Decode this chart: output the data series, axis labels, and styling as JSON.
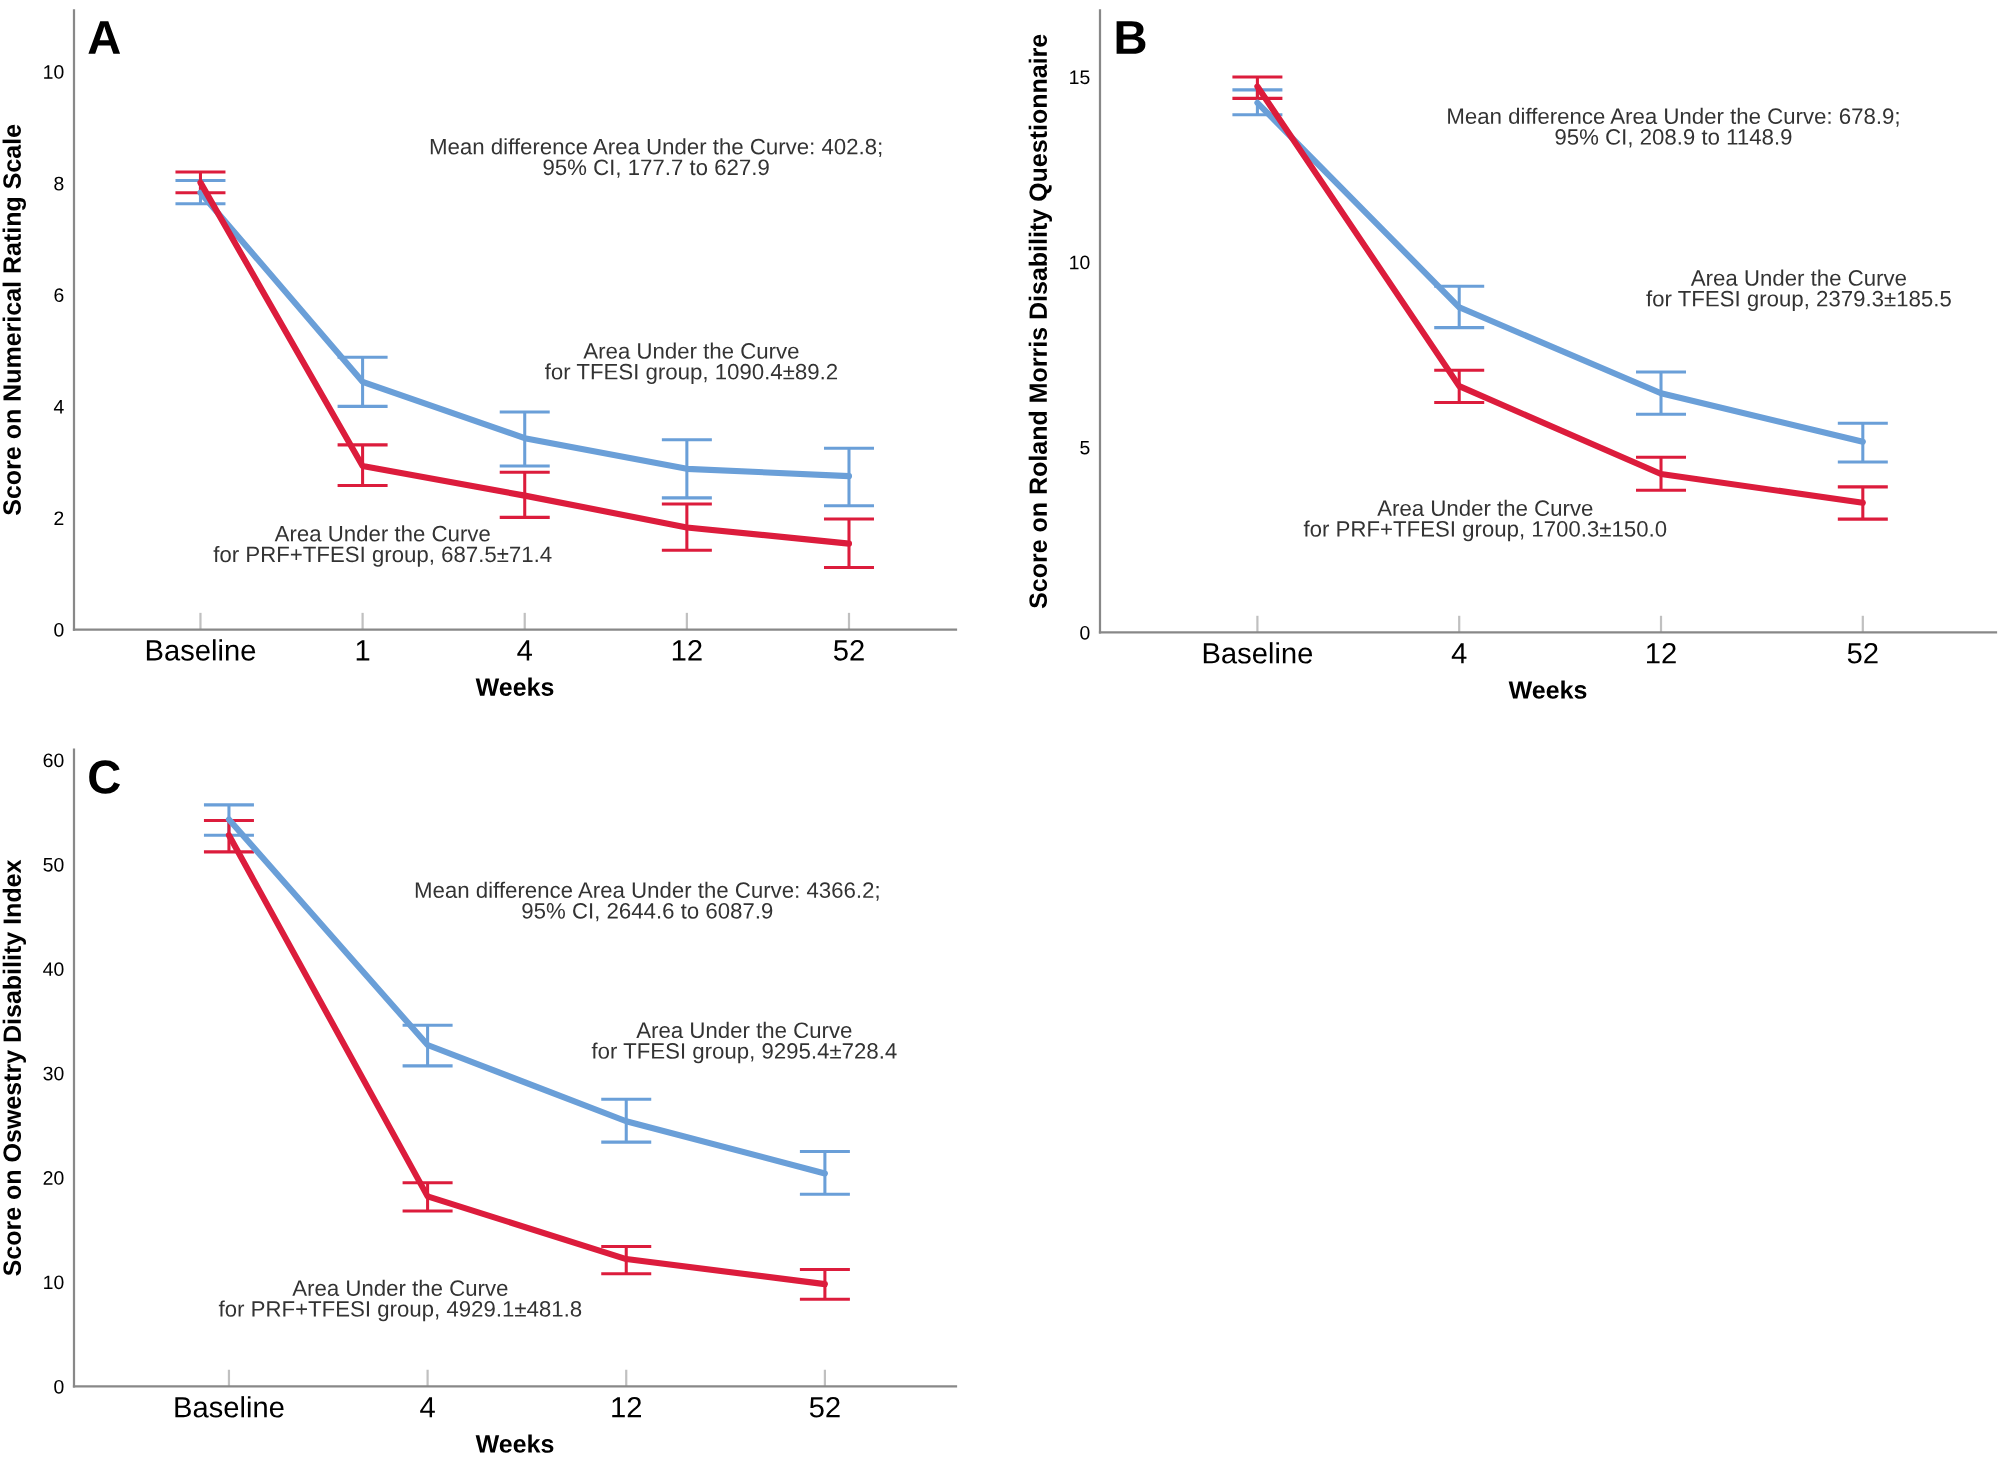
{
  "chart_data": [
    {
      "type": "line",
      "title": "A",
      "xlabel": "Weeks",
      "ylabel": "Score on Numerical Rating Scale",
      "categories": [
        "Baseline",
        "1",
        "4",
        "12",
        "52"
      ],
      "ylim": [
        0,
        11.1
      ],
      "yticks": [
        0,
        2,
        4,
        6,
        8,
        10
      ],
      "grid": false,
      "marker": "none",
      "line_style": "solid",
      "series": [
        {
          "color": "#6a9fd8",
          "values": [
            7.83,
            4.44,
            3.43,
            2.88,
            2.75
          ],
          "errors": [
            [
              7.63,
              8.05
            ],
            [
              4.0,
              4.88
            ],
            [
              2.93,
              3.9
            ],
            [
              2.36,
              3.4
            ],
            [
              2.22,
              3.25
            ]
          ]
        },
        {
          "color": "#dc1c3c",
          "values": [
            8.01,
            2.93,
            2.4,
            1.83,
            1.54
          ],
          "errors": [
            [
              7.83,
              8.2
            ],
            [
              2.58,
              3.31
            ],
            [
              2.01,
              2.82
            ],
            [
              1.42,
              2.25
            ],
            [
              1.11,
              1.98
            ]
          ]
        }
      ],
      "annotations": [
        "Mean difference Area Under the Curve: 402.8;\n95% CI, 177.7 to 627.9",
        "Area Under the Curve\nfor TFESI group, 1090.4±89.2",
        "Area Under the Curve\nfor PRF+TFESI group, 687.5±71.4"
      ]
    },
    {
      "type": "line",
      "title": "B",
      "xlabel": "Weeks",
      "ylabel": "Score on Roland Morris Disability Questionnaire",
      "categories": [
        "Baseline",
        "4",
        "12",
        "52"
      ],
      "ylim": [
        0,
        16.8
      ],
      "yticks": [
        0,
        5,
        10,
        15
      ],
      "grid": false,
      "marker": "none",
      "line_style": "solid",
      "series": [
        {
          "color": "#6a9fd8",
          "values": [
            14.3,
            8.78,
            6.46,
            5.15
          ],
          "errors": [
            [
              13.98,
              14.65
            ],
            [
              8.23,
              9.35
            ],
            [
              5.89,
              7.03
            ],
            [
              4.6,
              5.65
            ]
          ]
        },
        {
          "color": "#dc1c3c",
          "values": [
            14.74,
            6.65,
            4.28,
            3.5
          ],
          "errors": [
            [
              14.42,
              15.0
            ],
            [
              6.21,
              7.08
            ],
            [
              3.84,
              4.73
            ],
            [
              3.06,
              3.93
            ]
          ]
        }
      ],
      "annotations": [
        "Mean difference Area Under the Curve: 678.9;\n95% CI, 208.9 to 1148.9",
        "Area Under the Curve\nfor TFESI group, 2379.3±185.5",
        "Area Under the Curve\nfor PRF+TFESI group, 1700.3±150.0"
      ]
    },
    {
      "type": "line",
      "title": "C",
      "xlabel": "Weeks",
      "ylabel": "Score on Oswestry Disability Index",
      "categories": [
        "Baseline",
        "4",
        "12",
        "52"
      ],
      "ylim": [
        0,
        61
      ],
      "yticks": [
        0,
        10,
        20,
        30,
        40,
        50,
        60
      ],
      "grid": false,
      "marker": "none",
      "line_style": "solid",
      "series": [
        {
          "color": "#6a9fd8",
          "values": [
            54.3,
            32.7,
            25.4,
            20.4
          ],
          "errors": [
            [
              52.8,
              55.7
            ],
            [
              30.7,
              34.6
            ],
            [
              23.4,
              27.5
            ],
            [
              18.4,
              22.5
            ]
          ]
        },
        {
          "color": "#dc1c3c",
          "values": [
            52.8,
            18.2,
            12.2,
            9.8
          ],
          "errors": [
            [
              51.2,
              54.2
            ],
            [
              16.8,
              19.5
            ],
            [
              10.8,
              13.4
            ],
            [
              8.35,
              11.2
            ]
          ]
        }
      ],
      "annotations": [
        "Mean difference Area Under the Curve: 4366.2;\n95% CI, 2644.6 to 6087.9",
        "Area Under the Curve\nfor TFESI group, 9295.4±728.4",
        "Area Under the Curve\nfor PRF+TFESI group, 4929.1±481.8"
      ]
    }
  ]
}
